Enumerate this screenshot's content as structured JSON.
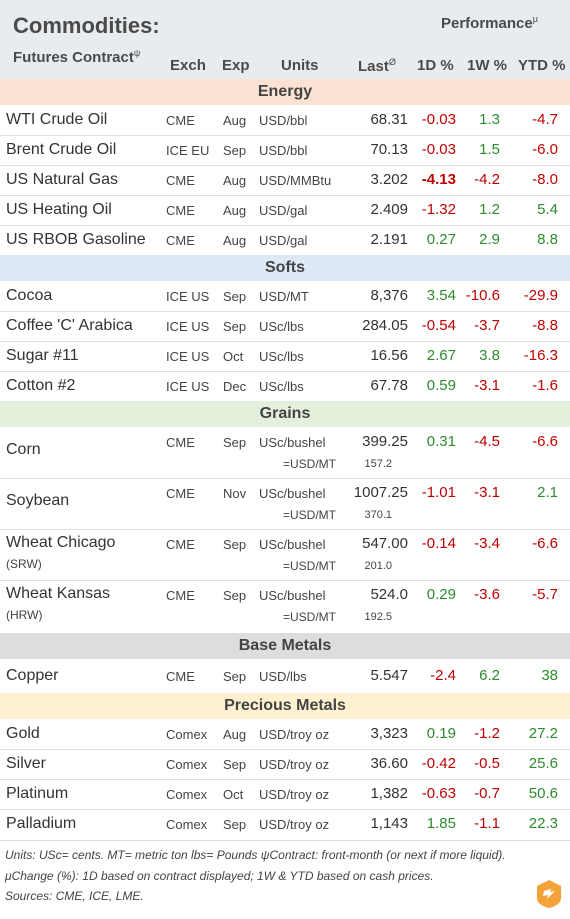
{
  "header": {
    "title": "Commodities:",
    "subtitle": "Futures Contract",
    "subtitle_mark": "ψ",
    "performance": "Performance",
    "performance_mark": "μ",
    "cols": {
      "exch": "Exch",
      "exp": "Exp",
      "units": "Units",
      "last": "Last",
      "last_mark": "Ø",
      "d1": "1D %",
      "w1": "1W %",
      "ytd": "YTD %"
    }
  },
  "sections": {
    "energy": "Energy",
    "softs": "Softs",
    "grains": "Grains",
    "base": "Base Metals",
    "precious": "Precious Metals"
  },
  "energy": [
    {
      "name": "WTI Crude Oil",
      "exch": "CME",
      "exp": "Aug",
      "units": "USD/bbl",
      "last": "68.31",
      "d1": "-0.03",
      "w1": "1.3",
      "ytd": "-4.7"
    },
    {
      "name": "Brent Crude Oil",
      "exch": "ICE EU",
      "exp": "Sep",
      "units": "USD/bbl",
      "last": "70.13",
      "d1": "-0.03",
      "w1": "1.5",
      "ytd": "-6.0"
    },
    {
      "name": "US Natural Gas",
      "exch": "CME",
      "exp": "Aug",
      "units": "USD/MMBtu",
      "last": "3.202",
      "d1": "-4.13",
      "w1": "-4.2",
      "ytd": "-8.0"
    },
    {
      "name": "US Heating Oil",
      "exch": "CME",
      "exp": "Aug",
      "units": "USD/gal",
      "last": "2.409",
      "d1": "-1.32",
      "w1": "1.2",
      "ytd": "5.4"
    },
    {
      "name": "US RBOB Gasoline",
      "exch": "CME",
      "exp": "Aug",
      "units": "USD/gal",
      "last": "2.191",
      "d1": "0.27",
      "w1": "2.9",
      "ytd": "8.8"
    }
  ],
  "softs": [
    {
      "name": "Cocoa",
      "exch": "ICE US",
      "exp": "Sep",
      "units": "USD/MT",
      "last": "8,376",
      "d1": "3.54",
      "w1": "-10.6",
      "ytd": "-29.9"
    },
    {
      "name": "Coffee 'C' Arabica",
      "exch": "ICE US",
      "exp": "Sep",
      "units": "USc/lbs",
      "last": "284.05",
      "d1": "-0.54",
      "w1": "-3.7",
      "ytd": "-8.8"
    },
    {
      "name": "Sugar #11",
      "exch": "ICE US",
      "exp": "Oct",
      "units": "USc/lbs",
      "last": "16.56",
      "d1": "2.67",
      "w1": "3.8",
      "ytd": "-16.3"
    },
    {
      "name": "Cotton #2",
      "exch": "ICE US",
      "exp": "Dec",
      "units": "USc/lbs",
      "last": "67.78",
      "d1": "0.59",
      "w1": "-3.1",
      "ytd": "-1.6"
    }
  ],
  "grains": [
    {
      "name": "Corn",
      "sub": "",
      "exch": "CME",
      "exp": "Sep",
      "units": "USc/bushel",
      "last": "399.25",
      "d1": "0.31",
      "w1": "-4.5",
      "ytd": "-6.6",
      "conv_units": "=USD/MT",
      "conv": "157.2"
    },
    {
      "name": "Soybean",
      "sub": "",
      "exch": "CME",
      "exp": "Nov",
      "units": "USc/bushel",
      "last": "1007.25",
      "d1": "-1.01",
      "w1": "-3.1",
      "ytd": "2.1",
      "conv_units": "=USD/MT",
      "conv": "370.1"
    },
    {
      "name": "Wheat Chicago",
      "sub": "(SRW)",
      "exch": "CME",
      "exp": "Sep",
      "units": "USc/bushel",
      "last": "547.00",
      "d1": "-0.14",
      "w1": "-3.4",
      "ytd": "-6.6",
      "conv_units": "=USD/MT",
      "conv": "201.0"
    },
    {
      "name": "Wheat Kansas",
      "sub": "(HRW)",
      "exch": "CME",
      "exp": "Sep",
      "units": "USc/bushel",
      "last": "524.0",
      "d1": "0.29",
      "w1": "-3.6",
      "ytd": "-5.7",
      "conv_units": "=USD/MT",
      "conv": "192.5"
    }
  ],
  "base": [
    {
      "name": "Copper",
      "exch": "CME",
      "exp": "Sep",
      "units": "USD/lbs",
      "last": "5.547",
      "d1": "-2.4",
      "w1": "6.2",
      "ytd": "38"
    }
  ],
  "precious": [
    {
      "name": "Gold",
      "exch": "Comex",
      "exp": "Aug",
      "units": "USD/troy oz",
      "last": "3,323",
      "d1": "0.19",
      "w1": "-1.2",
      "ytd": "27.2"
    },
    {
      "name": "Silver",
      "exch": "Comex",
      "exp": "Sep",
      "units": "USD/troy oz",
      "last": "36.60",
      "d1": "-0.42",
      "w1": "-0.5",
      "ytd": "25.6"
    },
    {
      "name": "Platinum",
      "exch": "Comex",
      "exp": "Oct",
      "units": "USD/troy oz",
      "last": "1,382",
      "d1": "-0.63",
      "w1": "-0.7",
      "ytd": "50.6"
    },
    {
      "name": "Palladium",
      "exch": "Comex",
      "exp": "Sep",
      "units": "USD/troy oz",
      "last": "1,143",
      "d1": "1.85",
      "w1": "-1.1",
      "ytd": "22.3"
    }
  ],
  "footer": {
    "line1": "Units: USc= cents.   MT= metric ton    lbs= Pounds  ψContract: front-month (or next if more liquid).",
    "line2": "μChange (%): 1D based on contract displayed; 1W & YTD based on cash prices.",
    "line3": "Sources: CME, ICE, LME."
  },
  "colors": {
    "negative": "#c00000",
    "positive": "#2e8b2e",
    "logo": "#f4a23a"
  }
}
